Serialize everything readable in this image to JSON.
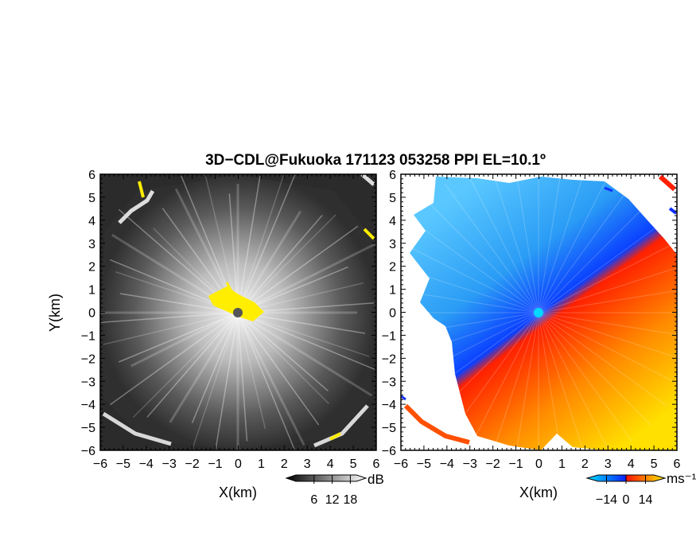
{
  "title": "3D−CDL@Fukuoka 171123 053258 PPI EL=10.1º",
  "chart_data": [
    {
      "type": "heatmap",
      "panel": "left",
      "quantity": "dB",
      "xlabel": "X(km)",
      "ylabel": "Y(km)",
      "xlim": [
        -6,
        6
      ],
      "ylim": [
        -6,
        6
      ],
      "xticks": [
        "−6",
        "−5",
        "−4",
        "−3",
        "−2",
        "−1",
        "0",
        "1",
        "2",
        "3",
        "4",
        "5",
        "6"
      ],
      "yticks": [
        "6",
        "5",
        "4",
        "3",
        "2",
        "1",
        "0",
        "−1",
        "−2",
        "−3",
        "−4",
        "−5",
        "−6"
      ],
      "colorbar": {
        "label": "dB",
        "ticks": [
          "6",
          "12",
          "18"
        ],
        "tick_values": [
          6,
          12,
          18
        ],
        "range": [
          0,
          20
        ],
        "colors": [
          "#000000",
          "#ffffff",
          "#ffeb00"
        ]
      },
      "center_marker_color": "#555555"
    },
    {
      "type": "heatmap",
      "panel": "right",
      "quantity": "Doppler velocity",
      "xlabel": "X(km)",
      "ylabel": "",
      "xlim": [
        -6,
        6
      ],
      "ylim": [
        -6,
        6
      ],
      "xticks": [
        "−6",
        "−5",
        "−4",
        "−3",
        "−2",
        "−1",
        "0",
        "1",
        "2",
        "3",
        "4",
        "5",
        "6"
      ],
      "yticks": [
        "6",
        "5",
        "4",
        "3",
        "2",
        "1",
        "0",
        "−1",
        "−2",
        "−3",
        "−4",
        "−5",
        "−6"
      ],
      "colorbar": {
        "label": "ms⁻¹",
        "ticks": [
          "−14",
          "0",
          "14"
        ],
        "tick_values": [
          -14,
          0,
          14
        ],
        "range": [
          -20,
          20
        ],
        "colors": [
          "#00e0ff",
          "#0040ff",
          "#ff0000",
          "#ffee00"
        ]
      },
      "center_marker_color": "#00d8ff"
    }
  ]
}
